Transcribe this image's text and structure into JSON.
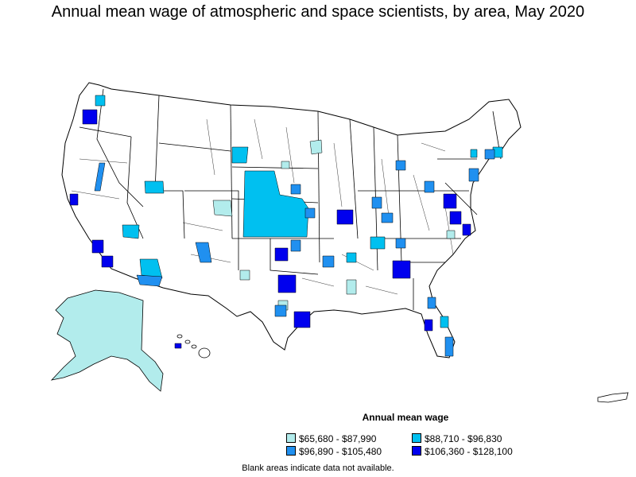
{
  "title": "Annual mean wage of atmospheric and space scientists, by area, May 2020",
  "legend": {
    "title": "Annual mean wage",
    "items": [
      {
        "label": "$65,680 - $87,990",
        "color": "#b2ecec"
      },
      {
        "label": "$88,710 - $96,830",
        "color": "#00c0f0"
      },
      {
        "label": "$96,890 - $105,480",
        "color": "#2090f0"
      },
      {
        "label": "$106,360 - $128,100",
        "color": "#0000ee"
      }
    ]
  },
  "note": "Blank areas indicate data not available."
}
